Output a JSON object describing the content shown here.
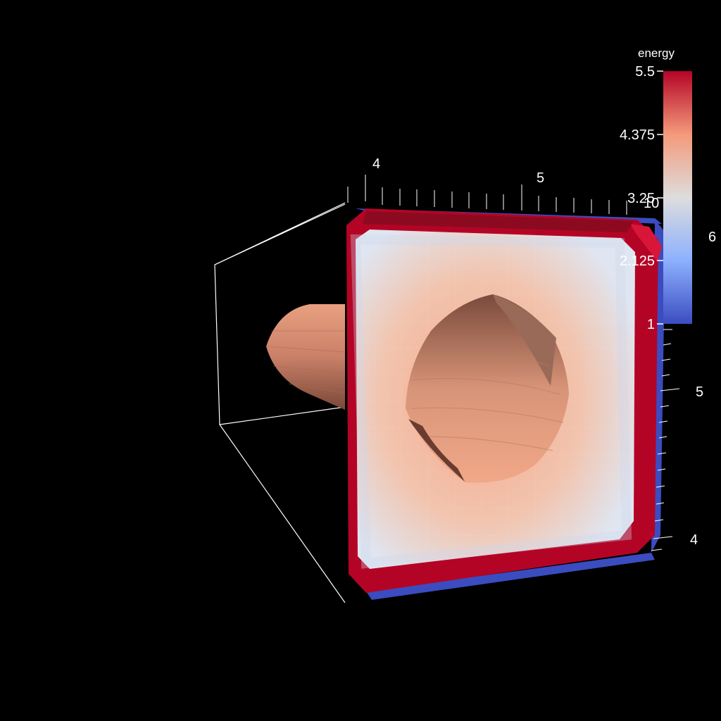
{
  "scalar_bar": {
    "title": "energy",
    "ticks": [
      "5.5",
      "4.375",
      "3.25",
      "2.125",
      "1"
    ],
    "range": [
      1,
      5.5
    ],
    "colors": [
      "#3b4cc0",
      "#dddddd",
      "#b40426"
    ]
  },
  "axes": {
    "top_ticks": [
      "4",
      "5"
    ],
    "right_ticks": [
      "10",
      "6",
      "5",
      "4"
    ]
  }
}
